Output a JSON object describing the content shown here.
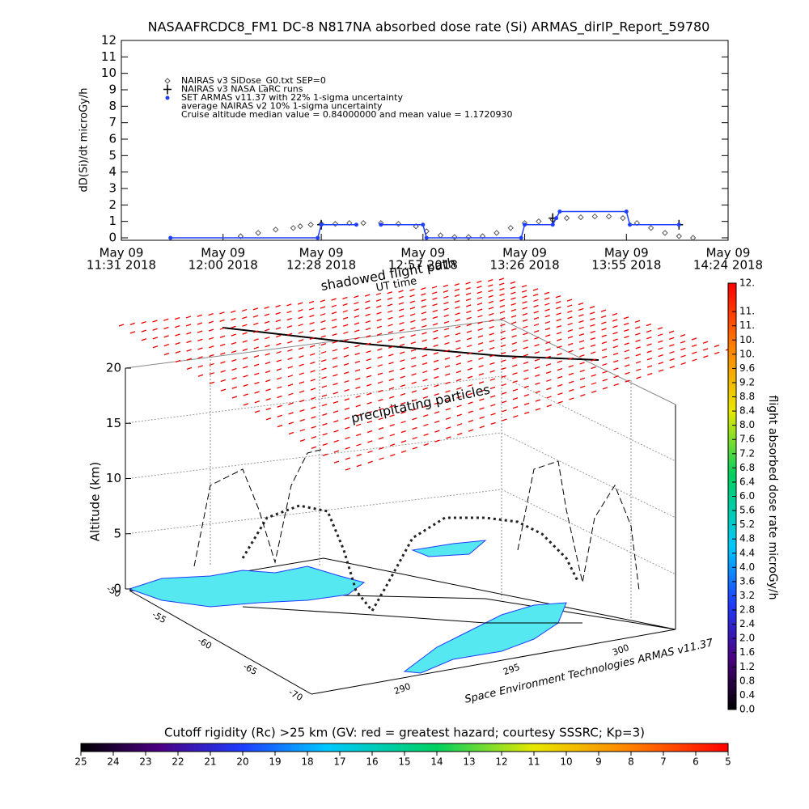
{
  "chart_data": [
    {
      "type": "scatter",
      "title": "NASAAFRCDC8_FM1 DC-8   N817NA absorbed dose rate (Si) ARMAS_dirIP_Report_59780",
      "y_label": "dD(Si)/dt microGy/h",
      "ylim": [
        0,
        12
      ],
      "yticks": [
        0,
        1,
        2,
        3,
        4,
        5,
        6,
        7,
        8,
        9,
        10,
        11,
        12
      ],
      "xlim": [
        "11:31",
        "14:24"
      ],
      "xticks": [
        {
          "value": "11:31",
          "label": [
            "May 09",
            "11:31 2018"
          ]
        },
        {
          "value": "12:00",
          "label": [
            "May 09",
            "12:00 2018"
          ]
        },
        {
          "value": "12:28",
          "label": [
            "May 09",
            "12:28 2018"
          ]
        },
        {
          "value": "12:57",
          "label": [
            "May 09",
            "12:57 2018"
          ]
        },
        {
          "value": "13:26",
          "label": [
            "May 09",
            "13:26 2018"
          ]
        },
        {
          "value": "13:55",
          "label": [
            "May 09",
            "13:55 2018"
          ]
        },
        {
          "value": "14:24",
          "label": [
            "May 09",
            "14:24 2018"
          ]
        }
      ],
      "series": [
        {
          "name": "NAIRAS v3 SiDose_G0.txt SEP=0",
          "color": "#555555",
          "marker": "diamond",
          "x": [
            "12:05",
            "12:10",
            "12:15",
            "12:20",
            "12:22",
            "12:25",
            "12:28",
            "12:32",
            "12:36",
            "12:40",
            "12:45",
            "12:50",
            "12:55",
            "12:58",
            "13:02",
            "13:06",
            "13:10",
            "13:14",
            "13:18",
            "13:22",
            "13:26",
            "13:30",
            "13:34",
            "13:38",
            "13:42",
            "13:46",
            "13:50",
            "13:54",
            "13:58",
            "14:02",
            "14:06",
            "14:10",
            "14:14"
          ],
          "values": [
            0.1,
            0.3,
            0.5,
            0.6,
            0.7,
            0.8,
            0.85,
            0.85,
            0.9,
            0.9,
            0.9,
            0.85,
            0.7,
            0.4,
            0.15,
            0.05,
            0.05,
            0.1,
            0.3,
            0.6,
            0.9,
            1.0,
            1.1,
            1.2,
            1.25,
            1.3,
            1.3,
            1.2,
            0.9,
            0.6,
            0.3,
            0.1,
            0
          ]
        },
        {
          "name": "NAIRAS v3 NASA LaRC runs",
          "color": "#000000",
          "marker": "plus",
          "x": [
            "12:28",
            "13:34",
            "14:10"
          ],
          "values": [
            0.8,
            1.2,
            0.8
          ]
        },
        {
          "name": "SET ARMAS v11.37 with 22% 1-sigma uncertainty",
          "color": "#1f3fff",
          "marker": "circle",
          "x": [
            "11:45",
            "12:27",
            "12:28",
            "12:38",
            "12:40",
            "12:45",
            "12:57",
            "12:58",
            "13:25",
            "13:26",
            "13:34",
            "13:35",
            "13:36",
            "13:55",
            "13:56",
            "14:10"
          ],
          "values": [
            0,
            0,
            0.8,
            0.8,
            null,
            0.8,
            0.8,
            0,
            0,
            0.8,
            0.8,
            1.2,
            1.6,
            1.6,
            0.8,
            0.8
          ]
        }
      ],
      "notes": [
        "average NAIRAS v2 10% 1-sigma uncertainty",
        "Cruise altitude median value = 0.84000000 and mean value = 1.1720930"
      ]
    },
    {
      "type": "surface3d",
      "annotations": [
        "shadowed flight path",
        "UT time",
        "precipitating particles"
      ],
      "z_label": "Altitude (km)",
      "zlim": [
        0,
        20
      ],
      "zticks": [
        0,
        5,
        10,
        15,
        20
      ],
      "lat_ticks": [
        -50,
        -55,
        -60,
        -65,
        -70
      ],
      "lon_ticks": [
        290,
        295,
        300
      ],
      "credit": "Space Environment Technologies ARMAS v11.37",
      "colorbar": {
        "title": "flight absorbed dose rate microGy/h",
        "lim": [
          0,
          12
        ],
        "ticks": [
          {
            "value": 0,
            "label": "0.0"
          },
          0.4,
          0.8,
          1.2,
          1.6,
          {
            "value": 2,
            "label": "2.0"
          },
          2.4,
          2.8,
          3.2,
          3.6,
          {
            "value": 4,
            "label": "4.0"
          },
          4.4,
          4.8,
          5.2,
          5.6,
          {
            "value": 6,
            "label": "6.0"
          },
          6.4,
          6.8,
          7.2,
          7.6,
          {
            "value": 8,
            "label": "8.0"
          },
          8.4,
          8.8,
          9.2,
          9.6,
          {
            "value": 10,
            "label": "10."
          },
          {
            "value": 10.4,
            "label": "10."
          },
          {
            "value": 10.8,
            "label": "11."
          },
          {
            "value": 11.2,
            "label": "11."
          },
          {
            "value": 12,
            "label": "12."
          }
        ]
      },
      "rigidity_bar": {
        "title": "Cutoff rigidity (Rc) >25 km (GV: red = greatest hazard; courtesy SSSRC; Kp=3)",
        "lim": [
          25,
          5
        ],
        "ticks": [
          25,
          24,
          23,
          22,
          21,
          20,
          19,
          18,
          17,
          16,
          15,
          14,
          13,
          12,
          11,
          10,
          9,
          8,
          7,
          6,
          5
        ]
      }
    }
  ]
}
